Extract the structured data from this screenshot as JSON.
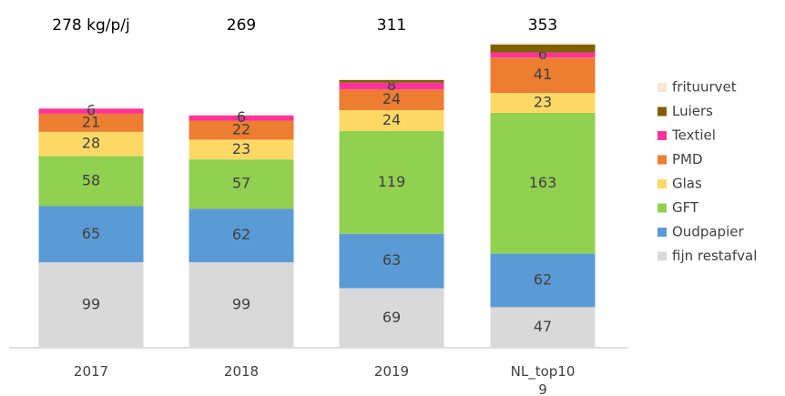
{
  "chart_data": {
    "type": "stacked_bar",
    "categories": [
      "2017",
      "2018",
      "2019",
      "NL_top109"
    ],
    "totals": [
      278,
      269,
      311,
      353
    ],
    "total_labels": [
      "278 kg/p/j",
      "269",
      "311",
      "353"
    ],
    "ylim": [
      0,
      370
    ],
    "legend": "right",
    "series": [
      {
        "name": "fijn restafval",
        "color": "#d9d9d9",
        "values": [
          99,
          99,
          69,
          47
        ],
        "labels": true
      },
      {
        "name": "Oudpapier",
        "color": "#5b9bd5",
        "values": [
          65,
          62,
          63,
          62
        ],
        "labels": true
      },
      {
        "name": "GFT",
        "color": "#92d050",
        "values": [
          58,
          57,
          119,
          163
        ],
        "labels": true
      },
      {
        "name": "Glas",
        "color": "#ffd966",
        "values": [
          28,
          23,
          24,
          23
        ],
        "labels": true
      },
      {
        "name": "PMD",
        "color": "#ed7d31",
        "values": [
          21,
          22,
          24,
          41
        ],
        "labels": true
      },
      {
        "name": "Textiel",
        "color": "#ff3399",
        "values": [
          6,
          6,
          8,
          6
        ],
        "labels": true
      },
      {
        "name": "Luiers",
        "color": "#7f6000",
        "values": [
          0,
          0,
          3,
          9
        ],
        "labels": false
      },
      {
        "name": "frituurvet",
        "color": "#fbe5d6",
        "values": [
          1,
          0,
          1,
          2
        ],
        "labels": false
      }
    ]
  }
}
